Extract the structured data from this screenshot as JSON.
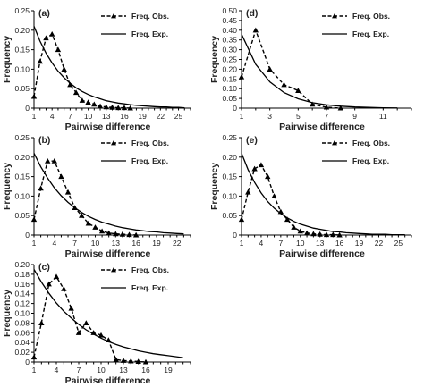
{
  "legend": {
    "observed": "Freq. Obs.",
    "expected": "Freq. Exp."
  },
  "chart_data": [
    {
      "panel": "(a)",
      "type": "line",
      "xlabel": "Pairwise difference",
      "ylabel": "Frequency",
      "xlim": [
        1,
        27
      ],
      "ylim": [
        0,
        0.25
      ],
      "xticks": [
        1,
        4,
        7,
        10,
        13,
        16,
        19,
        22,
        25
      ],
      "yticks": [
        0,
        0.05,
        0.1,
        0.15,
        0.2,
        0.25
      ],
      "grid": false,
      "legend_position": "top-right",
      "series": [
        {
          "name": "Freq. Obs.",
          "style": "dashed-triangle",
          "x": [
            1,
            2,
            3,
            4,
            5,
            6,
            7,
            8,
            9,
            10,
            11,
            12,
            13,
            14,
            15,
            16,
            17
          ],
          "y": [
            0.03,
            0.12,
            0.18,
            0.19,
            0.15,
            0.1,
            0.06,
            0.04,
            0.02,
            0.015,
            0.01,
            0.005,
            0.003,
            0.002,
            0.001,
            0.001,
            0.0
          ]
        },
        {
          "name": "Freq. Exp.",
          "style": "solid",
          "x": [
            1,
            2,
            3,
            4,
            5,
            6,
            7,
            8,
            9,
            10,
            11,
            12,
            13,
            14,
            15,
            16,
            17,
            18,
            19,
            20,
            21,
            22,
            23,
            24,
            25,
            26
          ],
          "y": [
            0.21,
            0.172,
            0.141,
            0.116,
            0.095,
            0.078,
            0.064,
            0.052,
            0.043,
            0.035,
            0.029,
            0.024,
            0.019,
            0.016,
            0.013,
            0.011,
            0.009,
            0.007,
            0.006,
            0.005,
            0.004,
            0.003,
            0.003,
            0.002,
            0.002,
            0.001
          ]
        }
      ]
    },
    {
      "panel": "(b)",
      "type": "line",
      "xlabel": "Pairwise difference",
      "ylabel": "Frequency",
      "xlim": [
        1,
        24
      ],
      "ylim": [
        0,
        0.25
      ],
      "xticks": [
        1,
        4,
        7,
        10,
        13,
        16,
        19,
        22
      ],
      "yticks": [
        0,
        0.05,
        0.1,
        0.15,
        0.2,
        0.25
      ],
      "grid": false,
      "legend_position": "top-right",
      "series": [
        {
          "name": "Freq. Obs.",
          "style": "dashed-triangle",
          "x": [
            1,
            2,
            3,
            4,
            5,
            6,
            7,
            8,
            9,
            10,
            11,
            12,
            13,
            14,
            15,
            16
          ],
          "y": [
            0.04,
            0.12,
            0.19,
            0.19,
            0.15,
            0.11,
            0.07,
            0.05,
            0.03,
            0.02,
            0.01,
            0.005,
            0.003,
            0.002,
            0.001,
            0.0
          ]
        },
        {
          "name": "Freq. Exp.",
          "style": "solid",
          "x": [
            1,
            2,
            3,
            4,
            5,
            6,
            7,
            8,
            9,
            10,
            11,
            12,
            13,
            14,
            15,
            16,
            17,
            18,
            19,
            20,
            21,
            22,
            23
          ],
          "y": [
            0.21,
            0.175,
            0.146,
            0.121,
            0.101,
            0.084,
            0.07,
            0.058,
            0.048,
            0.04,
            0.033,
            0.028,
            0.023,
            0.019,
            0.016,
            0.013,
            0.011,
            0.009,
            0.008,
            0.006,
            0.005,
            0.004,
            0.003
          ]
        }
      ]
    },
    {
      "panel": "(c)",
      "type": "line",
      "xlabel": "Pairwise difference",
      "ylabel": "Frequency",
      "xlim": [
        1,
        22
      ],
      "ylim": [
        0,
        0.2
      ],
      "xticks": [
        1,
        4,
        7,
        10,
        13,
        16,
        19
      ],
      "yticks": [
        0,
        0.02,
        0.04,
        0.06,
        0.08,
        0.1,
        0.12,
        0.14,
        0.16,
        0.18,
        0.2
      ],
      "grid": false,
      "legend_position": "top-right",
      "series": [
        {
          "name": "Freq. Obs.",
          "style": "dashed-triangle",
          "x": [
            1,
            2,
            3,
            4,
            5,
            6,
            7,
            8,
            9,
            10,
            11,
            12,
            13,
            14,
            15,
            16
          ],
          "y": [
            0.01,
            0.08,
            0.16,
            0.175,
            0.15,
            0.11,
            0.06,
            0.08,
            0.06,
            0.055,
            0.045,
            0.005,
            0.003,
            0.002,
            0.001,
            0.0
          ]
        },
        {
          "name": "Freq. Exp.",
          "style": "solid",
          "x": [
            1,
            2,
            3,
            4,
            5,
            6,
            7,
            8,
            9,
            10,
            11,
            12,
            13,
            14,
            15,
            16,
            17,
            18,
            19,
            20,
            21
          ],
          "y": [
            0.19,
            0.164,
            0.141,
            0.121,
            0.104,
            0.09,
            0.077,
            0.066,
            0.057,
            0.049,
            0.042,
            0.036,
            0.031,
            0.027,
            0.023,
            0.02,
            0.017,
            0.015,
            0.013,
            0.011,
            0.009
          ]
        }
      ]
    },
    {
      "panel": "(d)",
      "type": "line",
      "xlabel": "Pairwise difference",
      "ylabel": "Frequency",
      "xlim": [
        1,
        13
      ],
      "ylim": [
        0,
        0.5
      ],
      "xticks": [
        1,
        3,
        5,
        7,
        9,
        11
      ],
      "yticks": [
        0,
        0.05,
        0.1,
        0.15,
        0.2,
        0.25,
        0.3,
        0.35,
        0.4,
        0.45,
        0.5
      ],
      "grid": false,
      "legend_position": "top-right",
      "series": [
        {
          "name": "Freq. Obs.",
          "style": "dashed-triangle",
          "x": [
            1,
            2,
            3,
            4,
            5,
            6,
            7,
            8
          ],
          "y": [
            0.16,
            0.4,
            0.2,
            0.12,
            0.09,
            0.02,
            0.005,
            0.0
          ]
        },
        {
          "name": "Freq. Exp.",
          "style": "solid",
          "x": [
            1,
            2,
            3,
            4,
            5,
            6,
            7,
            8,
            9,
            10,
            11,
            12
          ],
          "y": [
            0.38,
            0.225,
            0.135,
            0.08,
            0.048,
            0.028,
            0.017,
            0.01,
            0.006,
            0.004,
            0.002,
            0.001
          ]
        }
      ]
    },
    {
      "panel": "(e)",
      "type": "line",
      "xlabel": "Pairwise difference",
      "ylabel": "Frequency",
      "xlim": [
        1,
        27
      ],
      "ylim": [
        0,
        0.25
      ],
      "xticks": [
        1,
        4,
        7,
        10,
        13,
        16,
        19,
        22,
        25
      ],
      "yticks": [
        0,
        0.05,
        0.1,
        0.15,
        0.2,
        0.25
      ],
      "grid": false,
      "legend_position": "top-right",
      "series": [
        {
          "name": "Freq. Obs.",
          "style": "dashed-triangle",
          "x": [
            1,
            2,
            3,
            4,
            5,
            6,
            7,
            8,
            9,
            10,
            11,
            12,
            13,
            14,
            15,
            16
          ],
          "y": [
            0.04,
            0.11,
            0.17,
            0.18,
            0.15,
            0.1,
            0.06,
            0.04,
            0.02,
            0.01,
            0.005,
            0.003,
            0.002,
            0.001,
            0.001,
            0.0
          ]
        },
        {
          "name": "Freq. Exp.",
          "style": "solid",
          "x": [
            1,
            2,
            3,
            4,
            5,
            6,
            7,
            8,
            9,
            10,
            11,
            12,
            13,
            14,
            15,
            16,
            17,
            18,
            19,
            20,
            21,
            22,
            23,
            24,
            25,
            26
          ],
          "y": [
            0.21,
            0.168,
            0.135,
            0.108,
            0.086,
            0.069,
            0.055,
            0.044,
            0.035,
            0.028,
            0.023,
            0.018,
            0.015,
            0.012,
            0.009,
            0.008,
            0.006,
            0.005,
            0.004,
            0.003,
            0.002,
            0.002,
            0.002,
            0.001,
            0.001,
            0.001
          ]
        }
      ]
    }
  ]
}
